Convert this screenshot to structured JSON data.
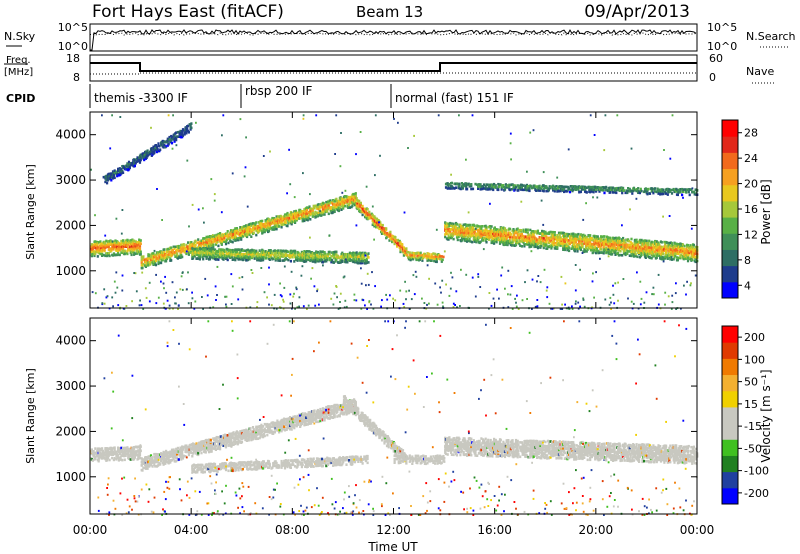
{
  "header": {
    "title": "Fort Hays East (fitACF)",
    "beam": "Beam 13",
    "date": "09/Apr/2013"
  },
  "sky_panel": {
    "left_label": "N.Sky",
    "right_label": "N.Search",
    "left_ticks": [
      "10^5",
      "10^0"
    ],
    "right_ticks": [
      "10^5",
      "10^0"
    ]
  },
  "freq_panel": {
    "left_label_line1": "Freq.",
    "left_label_line2": "[MHz]",
    "right_label": "Nave",
    "left_ticks": [
      "18",
      "8"
    ],
    "right_ticks": [
      "60",
      "0"
    ]
  },
  "cpid": {
    "label": "CPID",
    "segments": [
      {
        "text": "themis -3300 IF",
        "start_hour": 0
      },
      {
        "text": "rbsp 200 IF",
        "start_hour": 6
      },
      {
        "text": "normal (fast) 151 IF",
        "start_hour": 12
      }
    ]
  },
  "time_axis": {
    "label": "Time UT",
    "ticks": [
      "00:00",
      "04:00",
      "08:00",
      "12:00",
      "16:00",
      "20:00",
      "00:00"
    ]
  },
  "power_colorbar": {
    "label": "Power [dB]",
    "ticks": [
      "28",
      "24",
      "20",
      "16",
      "12",
      "8",
      "4"
    ]
  },
  "velocity_colorbar": {
    "label": "Velocity [m s⁻¹]",
    "ticks": [
      "200",
      "100",
      "50",
      "15",
      "-15",
      "-50",
      "-100",
      "-200"
    ]
  },
  "chart_data": [
    {
      "type": "heatmap",
      "name": "power",
      "ylabel": "Slant Range [km]",
      "xlabel": "Time UT",
      "xlim_hours": [
        0,
        24
      ],
      "ylim_km": [
        180,
        4500
      ],
      "yticks": [
        1000,
        2000,
        3000,
        4000
      ],
      "colorbar_range_db": [
        0,
        30
      ],
      "echo_bands": [
        {
          "t": [
            0,
            2
          ],
          "r_center_km": [
            1500,
            1550
          ],
          "width_km": 350,
          "peak_db": [
            22,
            26
          ]
        },
        {
          "t": [
            2,
            10.5
          ],
          "r_center_km": [
            1200,
            2600
          ],
          "width_km": 300,
          "peak_db": [
            18,
            26
          ]
        },
        {
          "t": [
            10.5,
            12.5
          ],
          "r_center_km": [
            2500,
            1400
          ],
          "width_km": 250,
          "peak_db": [
            22,
            28
          ]
        },
        {
          "t": [
            12.5,
            14
          ],
          "r_center_km": [
            1350,
            1300
          ],
          "width_km": 200,
          "peak_db": [
            20,
            24
          ]
        },
        {
          "t": [
            4,
            11
          ],
          "r_center_km": [
            1400,
            1300
          ],
          "width_km": 250,
          "peak_db": [
            14,
            20
          ]
        },
        {
          "t": [
            14,
            24
          ],
          "r_center_km": [
            1900,
            1400
          ],
          "width_km": 400,
          "peak_db": [
            18,
            26
          ]
        },
        {
          "t": [
            14,
            24
          ],
          "r_center_km": [
            2900,
            2750
          ],
          "width_km": 150,
          "peak_db": [
            8,
            14
          ]
        },
        {
          "t": [
            0.5,
            4
          ],
          "r_center_km": [
            3000,
            4200
          ],
          "width_km": 200,
          "peak_db": [
            4,
            10
          ]
        }
      ]
    },
    {
      "type": "heatmap",
      "name": "velocity",
      "ylabel": "Slant Range [km]",
      "xlabel": "Time UT",
      "xlim_hours": [
        0,
        24
      ],
      "ylim_km": [
        180,
        4500
      ],
      "yticks": [
        1000,
        2000,
        3000,
        4000
      ],
      "colorbar_range_ms": [
        -250,
        250
      ],
      "echo_bands": [
        {
          "t": [
            0,
            2
          ],
          "r_center_km": [
            1500,
            1550
          ],
          "width_km": 300,
          "velocity_ms": [
            -10,
            10
          ]
        },
        {
          "t": [
            2,
            10.5
          ],
          "r_center_km": [
            1300,
            2600
          ],
          "width_km": 300,
          "velocity_ms": [
            -10,
            10
          ]
        },
        {
          "t": [
            10,
            12.5
          ],
          "r_center_km": [
            2700,
            1400
          ],
          "width_km": 250,
          "velocity_ms": [
            30,
            60
          ]
        },
        {
          "t": [
            4,
            11
          ],
          "r_center_km": [
            1200,
            1400
          ],
          "width_km": 200,
          "velocity_ms": [
            30,
            60
          ]
        },
        {
          "t": [
            12,
            14
          ],
          "r_center_km": [
            1400,
            1400
          ],
          "width_km": 200,
          "velocity_ms": [
            -10,
            10
          ]
        },
        {
          "t": [
            14,
            24
          ],
          "r_center_km": [
            1700,
            1500
          ],
          "width_km": 400,
          "velocity_ms": [
            -10,
            10
          ]
        }
      ]
    }
  ],
  "colors": {
    "power_scale": [
      "#0000ff",
      "#1e3c8c",
      "#2e6e64",
      "#3f8f58",
      "#58b046",
      "#a6c83a",
      "#e8c81f",
      "#f6a020",
      "#f26a1c",
      "#e2281a",
      "#ff0000"
    ],
    "velocity_scale": [
      "#ff0000",
      "#e03a00",
      "#f07a00",
      "#f4b030",
      "#f0d000",
      "#c8c8c0",
      "#c8c8c0",
      "#40c020",
      "#208020",
      "#2040a0",
      "#0000ff"
    ]
  }
}
